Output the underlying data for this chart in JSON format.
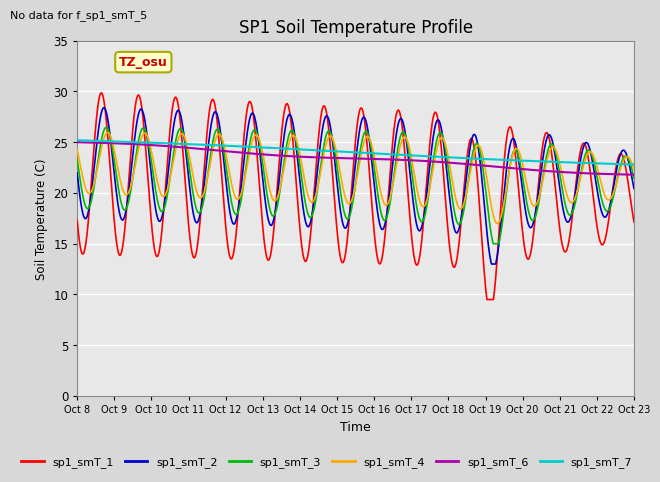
{
  "title": "SP1 Soil Temperature Profile",
  "xlabel": "Time",
  "ylabel": "Soil Temperature (C)",
  "no_data_text": "No data for f_sp1_smT_5",
  "tz_label": "TZ_osu",
  "ylim": [
    0,
    35
  ],
  "xlim": [
    0,
    15
  ],
  "x_tick_labels": [
    "Oct 8",
    "Oct 9",
    "Oct 10",
    "Oct 11",
    "Oct 12",
    "Oct 13",
    "Oct 14",
    "Oct 15",
    "Oct 16",
    "Oct 17",
    "Oct 18",
    "Oct 19",
    "Oct 20",
    "Oct 21",
    "Oct 22",
    "Oct 23"
  ],
  "yticks": [
    0,
    5,
    10,
    15,
    20,
    25,
    30,
    35
  ],
  "background_color": "#d8d8d8",
  "plot_bg_color": "#e8e8e8",
  "grid_color": "#ffffff",
  "colors": {
    "sp1_smT_1": "#ff0000",
    "sp1_smT_2": "#0000cc",
    "sp1_smT_3": "#00bb00",
    "sp1_smT_4": "#ffaa00",
    "sp1_smT_6": "#aa00aa",
    "sp1_smT_7": "#00cccc"
  },
  "legend_labels": [
    "sp1_smT_1",
    "sp1_smT_2",
    "sp1_smT_3",
    "sp1_smT_4",
    "sp1_smT_6",
    "sp1_smT_7"
  ]
}
